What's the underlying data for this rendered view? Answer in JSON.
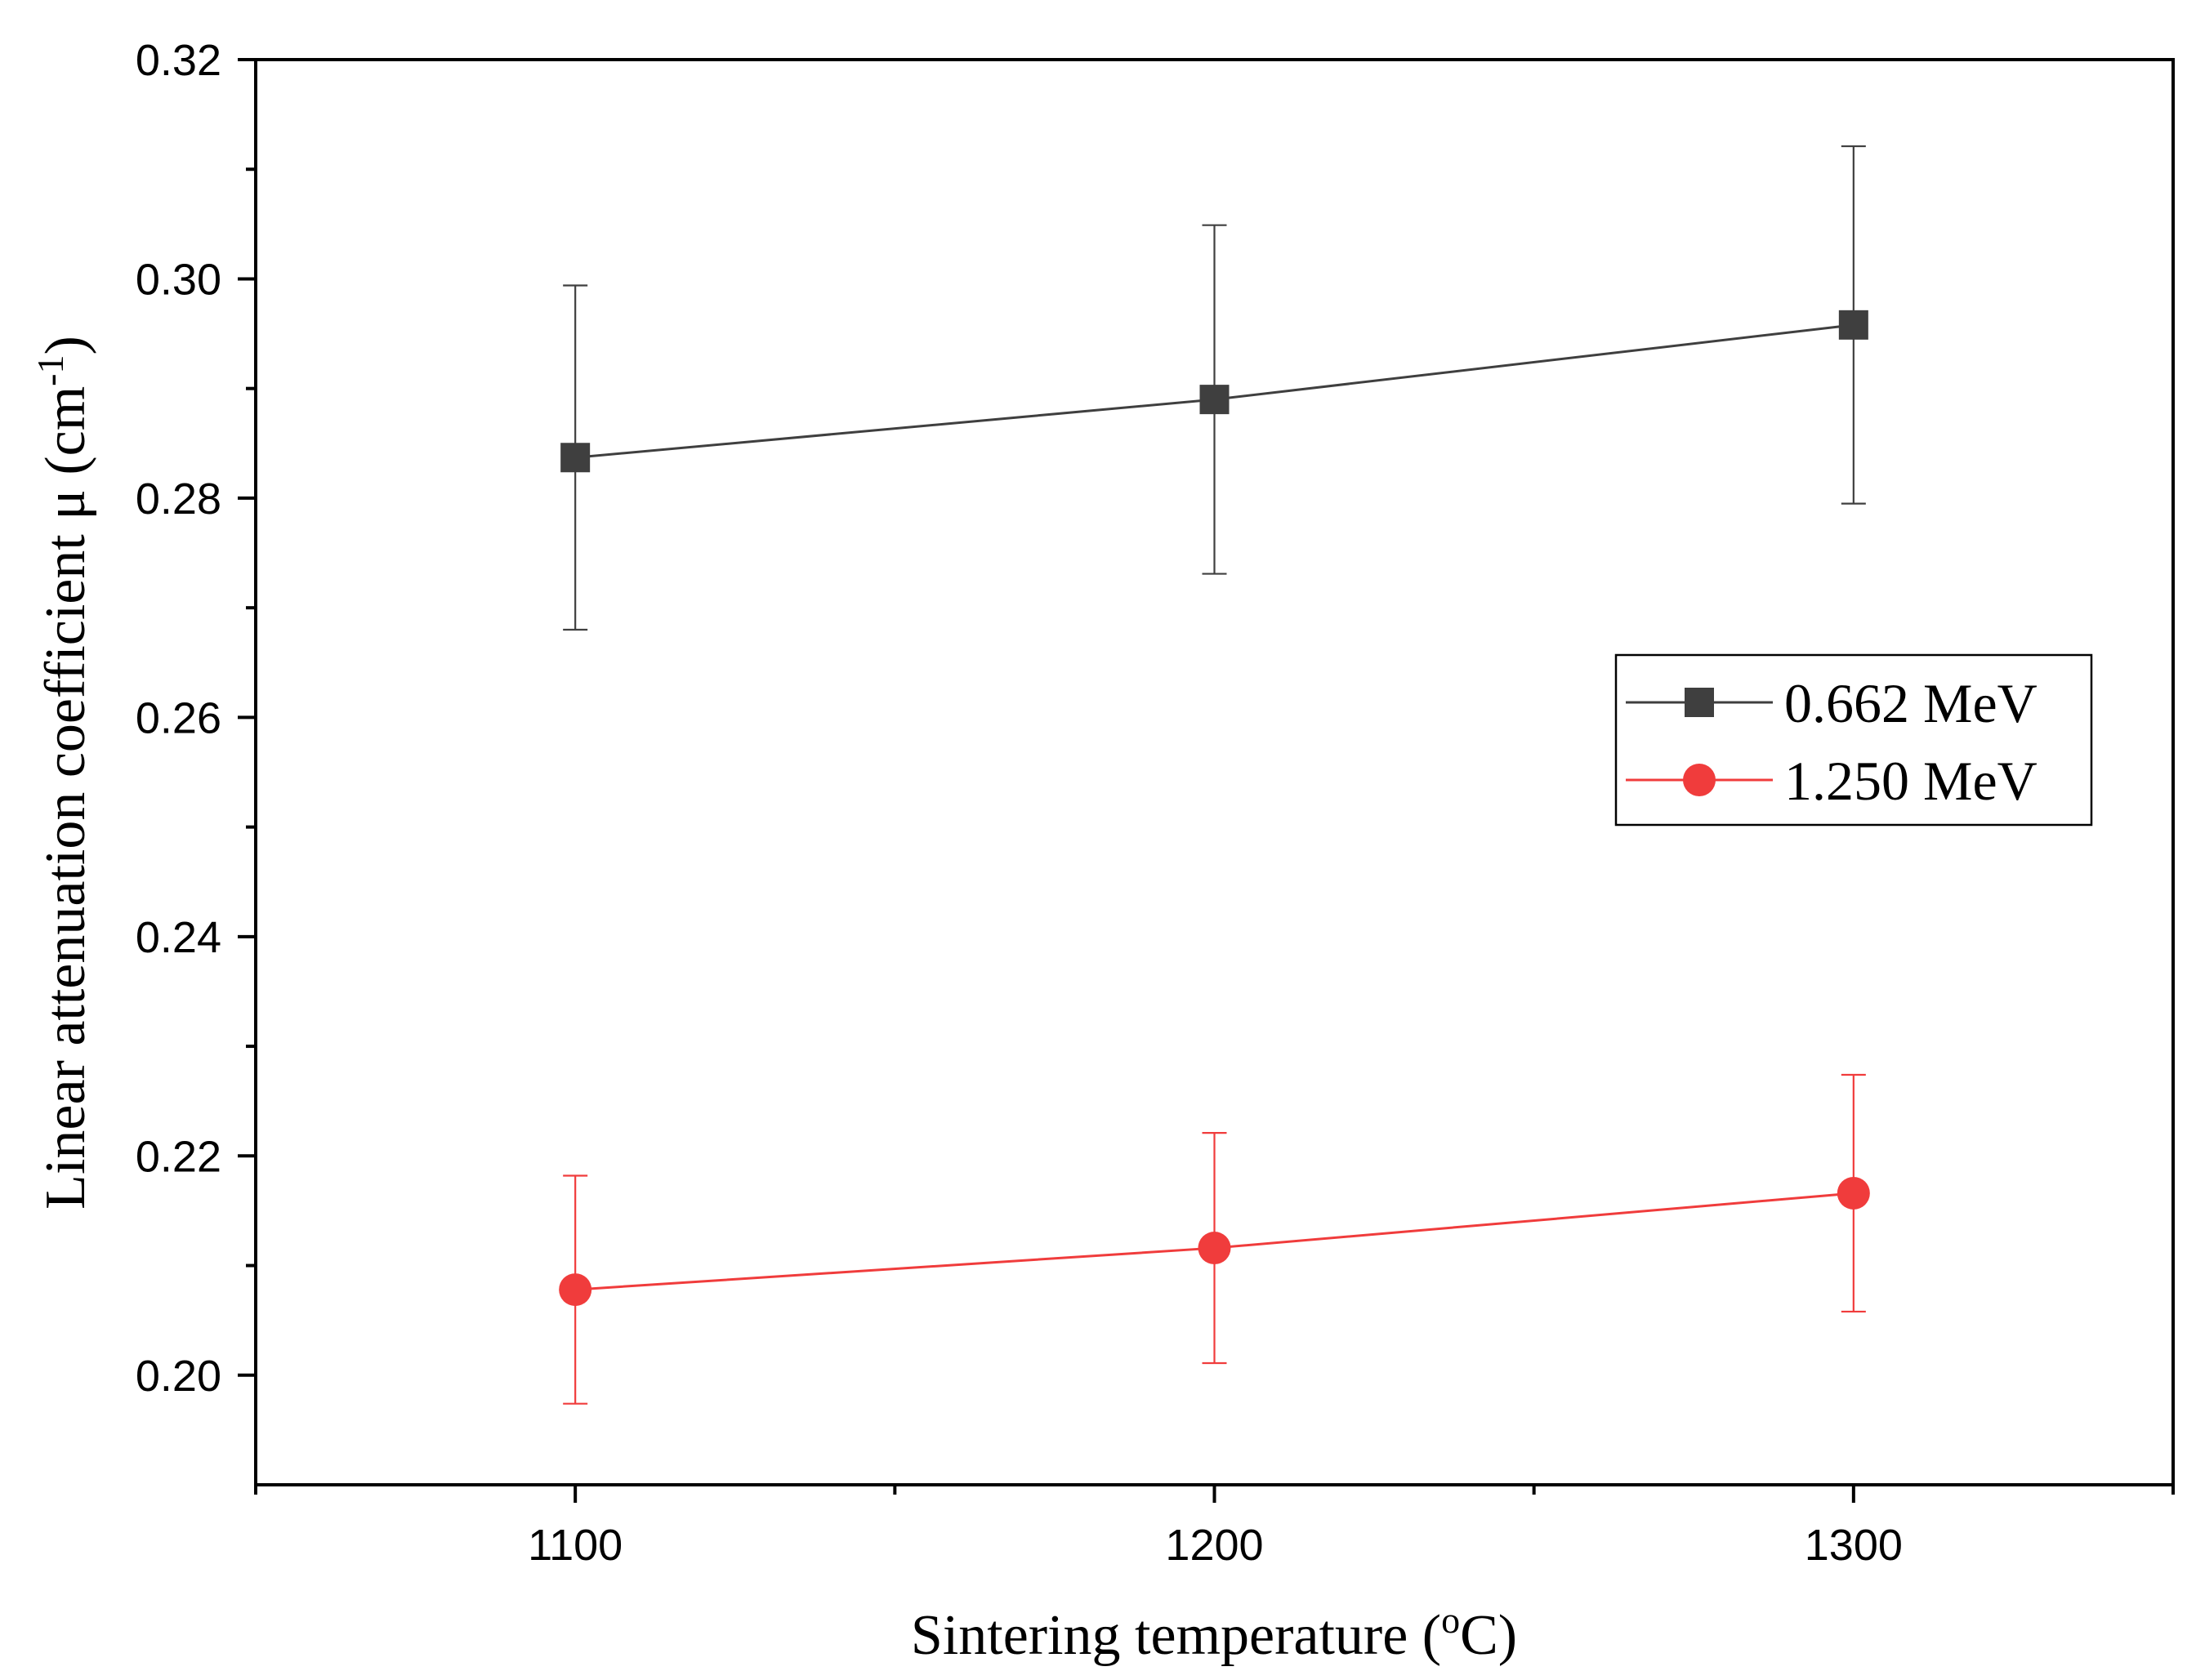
{
  "chart_data": {
    "type": "line",
    "x": [
      1100,
      1200,
      1300
    ],
    "series": [
      {
        "name": "0.662 MeV",
        "color": "#3f3f3f",
        "marker": "square",
        "values": [
          0.2837,
          0.289,
          0.2958
        ],
        "errors": [
          0.0157,
          0.0159,
          0.0163
        ]
      },
      {
        "name": "1.250 MeV",
        "color": "#f03c3c",
        "marker": "circle",
        "values": [
          0.2078,
          0.2116,
          0.2166
        ],
        "errors": [
          0.0104,
          0.0105,
          0.0108
        ]
      }
    ],
    "xlim": [
      1050,
      1350
    ],
    "ylim": [
      0.19,
      0.32
    ],
    "xticks": [
      1100,
      1200,
      1300
    ],
    "xtick_labels": [
      "1100",
      "1200",
      "1300"
    ],
    "xminor": [
      1050,
      1150,
      1250,
      1350
    ],
    "yticks": [
      0.2,
      0.22,
      0.24,
      0.26,
      0.28,
      0.3,
      0.32
    ],
    "ytick_labels": [
      "0.20",
      "0.22",
      "0.24",
      "0.26",
      "0.28",
      "0.30",
      "0.32"
    ],
    "yminor": [
      0.21,
      0.23,
      0.25,
      0.27,
      0.29,
      0.31
    ],
    "xlabel": {
      "main": "Sintering temperature (",
      "sup": "o",
      "tail": "C)"
    },
    "ylabel": {
      "main": "Linear attenuation coefficient μ (cm",
      "sup": "-1",
      "tail": ")"
    },
    "legend_position": "center-right",
    "grid": false
  }
}
